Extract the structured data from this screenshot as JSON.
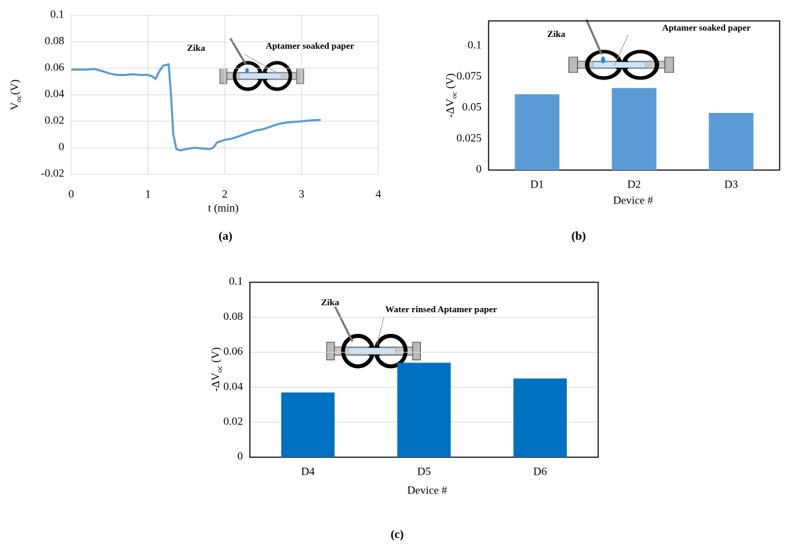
{
  "chart_data": [
    {
      "type": "line",
      "grid": "both",
      "color": "#5b9bd5",
      "x": [
        0,
        0.1,
        0.2,
        0.3,
        0.4,
        0.5,
        0.6,
        0.7,
        0.8,
        0.9,
        1.0,
        1.05,
        1.1,
        1.15,
        1.2,
        1.27,
        1.3,
        1.33,
        1.37,
        1.42,
        1.5,
        1.6,
        1.7,
        1.8,
        1.85,
        1.9,
        2.0,
        2.1,
        2.2,
        2.3,
        2.4,
        2.5,
        2.6,
        2.7,
        2.8,
        2.9,
        3.0,
        3.1,
        3.2,
        3.25
      ],
      "values": [
        0.059,
        0.059,
        0.059,
        0.0595,
        0.058,
        0.056,
        0.055,
        0.055,
        0.0555,
        0.055,
        0.055,
        0.054,
        0.052,
        0.058,
        0.062,
        0.063,
        0.04,
        0.01,
        -0.001,
        -0.002,
        -0.001,
        0,
        -0.0005,
        -0.001,
        0,
        0.004,
        0.006,
        0.007,
        0.009,
        0.011,
        0.013,
        0.014,
        0.016,
        0.018,
        0.019,
        0.0195,
        0.02,
        0.0205,
        0.021,
        0.021
      ],
      "xlim": [
        0,
        4
      ],
      "xticks": [
        0,
        1,
        2,
        3,
        4
      ],
      "ylim": [
        -0.02,
        0.1
      ],
      "yticks": [
        -0.02,
        0,
        0.02,
        0.04,
        0.06,
        0.08,
        0.1
      ],
      "x_label": "t (min)",
      "y_label": [
        "V",
        "oc",
        "(V)"
      ],
      "annotations": [
        "Zika",
        "Aptamer soaked paper"
      ],
      "caption": "(a)"
    },
    {
      "type": "bar",
      "grid": "none",
      "color": "#5b9bd5",
      "categories": [
        "D1",
        "D2",
        "D3"
      ],
      "values": [
        0.061,
        0.066,
        0.046
      ],
      "ylim": [
        0,
        0.12
      ],
      "yticks": [
        0,
        0.025,
        0.05,
        0.075,
        0.1
      ],
      "x_label": "Device #",
      "y_label": [
        "-ΔV",
        "oc",
        " (V)"
      ],
      "annotations": [
        "Zika",
        "Aptamer soaked paper"
      ],
      "caption": "(b)"
    },
    {
      "type": "bar",
      "grid": "y",
      "color": "#0070c0",
      "categories": [
        "D4",
        "D5",
        "D6"
      ],
      "values": [
        0.037,
        0.054,
        0.045
      ],
      "ylim": [
        0,
        0.1
      ],
      "yticks": [
        0,
        0.02,
        0.04,
        0.06,
        0.08,
        0.1
      ],
      "x_label": "Device #",
      "y_label": [
        "-ΔV",
        "oc",
        " (V)"
      ],
      "annotations": [
        "Zika",
        "Water rinsed Aptamer paper"
      ],
      "caption": "(c)"
    }
  ]
}
